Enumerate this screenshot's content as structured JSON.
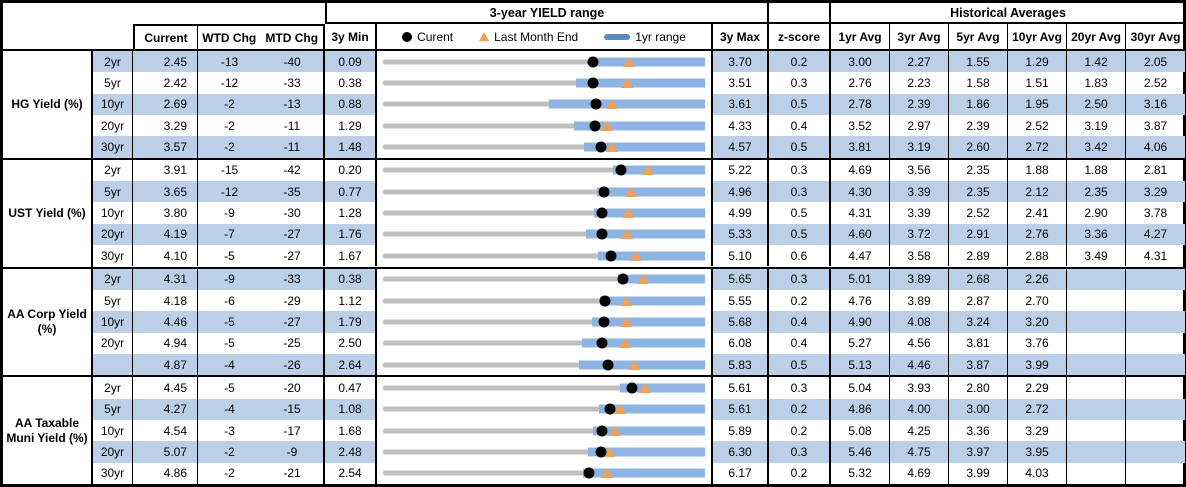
{
  "header": {
    "chart_group_title": "3-year YIELD range",
    "historical_group_title": "Historical Averages",
    "col_current": "Current",
    "col_wtd": "WTD Chg",
    "col_mtd": "MTD Chg",
    "col_3y_min": "3y Min",
    "col_3y_max": "3y Max",
    "col_zscore": "z-score",
    "avg_cols": [
      "1yr Avg",
      "3yr Avg",
      "5yr Avg",
      "10yr Avg",
      "20yr Avg",
      "30yr Avg"
    ],
    "legend": {
      "current": "Curent",
      "last_month_end": "Last Month End",
      "one_yr_range": "1yr range"
    }
  },
  "colors": {
    "row_stripe": "#BCCFE8",
    "range_bar_blue": "#8EB4E3",
    "track_gray": "#BFBFBF",
    "marker_orange": "#F2A054",
    "marker_black": "#060606",
    "legend_bar_blue": "#5B8AC5"
  },
  "chart_data": {
    "type": "table",
    "description": "Yield table; each row has a bullet-range chart plotting current (black dot), last month end (orange triangle) and 1yr range (blue bar) on a 3y min-max gray track.",
    "sections": [
      {
        "label": "HG Yield (%)",
        "rows": [
          {
            "tenor": "2yr",
            "current": 2.45,
            "wtd_chg": -13,
            "mtd_chg": -40,
            "min_3y": 0.09,
            "max_3y": 3.7,
            "z_score": 0.2,
            "last_month_end": 2.85,
            "one_yr_low": 2.4,
            "avgs": [
              "3.00",
              "2.27",
              "1.55",
              "1.29",
              "1.42",
              "2.05"
            ]
          },
          {
            "tenor": "5yr",
            "current": 2.42,
            "wtd_chg": -12,
            "mtd_chg": -33,
            "min_3y": 0.38,
            "max_3y": 3.51,
            "z_score": 0.3,
            "last_month_end": 2.75,
            "one_yr_low": 2.26,
            "avgs": [
              "2.76",
              "2.23",
              "1.58",
              "1.51",
              "1.83",
              "2.52"
            ]
          },
          {
            "tenor": "10yr",
            "current": 2.69,
            "wtd_chg": -2,
            "mtd_chg": -13,
            "min_3y": 0.88,
            "max_3y": 3.61,
            "z_score": 0.5,
            "last_month_end": 2.82,
            "one_yr_low": 2.29,
            "avgs": [
              "2.78",
              "2.39",
              "1.86",
              "1.95",
              "2.50",
              "3.16"
            ]
          },
          {
            "tenor": "20yr",
            "current": 3.29,
            "wtd_chg": -2,
            "mtd_chg": -11,
            "min_3y": 1.29,
            "max_3y": 4.33,
            "z_score": 0.4,
            "last_month_end": 3.4,
            "one_yr_low": 3.09,
            "avgs": [
              "3.52",
              "2.97",
              "2.39",
              "2.52",
              "3.19",
              "3.87"
            ]
          },
          {
            "tenor": "30yr",
            "current": 3.57,
            "wtd_chg": -2,
            "mtd_chg": -11,
            "min_3y": 1.48,
            "max_3y": 4.57,
            "z_score": 0.5,
            "last_month_end": 3.68,
            "one_yr_low": 3.41,
            "avgs": [
              "3.81",
              "3.19",
              "2.60",
              "2.72",
              "3.42",
              "4.06"
            ]
          }
        ]
      },
      {
        "label": "UST Yield (%)",
        "rows": [
          {
            "tenor": "2yr",
            "current": 3.91,
            "wtd_chg": -15,
            "mtd_chg": -42,
            "min_3y": 0.2,
            "max_3y": 5.22,
            "z_score": 0.3,
            "last_month_end": 4.33,
            "one_yr_low": 3.79,
            "avgs": [
              "4.69",
              "3.56",
              "2.35",
              "1.88",
              "1.88",
              "2.81"
            ]
          },
          {
            "tenor": "5yr",
            "current": 3.65,
            "wtd_chg": -12,
            "mtd_chg": -35,
            "min_3y": 0.77,
            "max_3y": 4.96,
            "z_score": 0.3,
            "last_month_end": 4.0,
            "one_yr_low": 3.56,
            "avgs": [
              "4.30",
              "3.39",
              "2.35",
              "2.12",
              "2.35",
              "3.29"
            ]
          },
          {
            "tenor": "10yr",
            "current": 3.8,
            "wtd_chg": -9,
            "mtd_chg": -30,
            "min_3y": 1.28,
            "max_3y": 4.99,
            "z_score": 0.5,
            "last_month_end": 4.1,
            "one_yr_low": 3.71,
            "avgs": [
              "4.31",
              "3.39",
              "2.52",
              "2.41",
              "2.90",
              "3.78"
            ]
          },
          {
            "tenor": "20yr",
            "current": 4.19,
            "wtd_chg": -7,
            "mtd_chg": -27,
            "min_3y": 1.76,
            "max_3y": 5.33,
            "z_score": 0.5,
            "last_month_end": 4.46,
            "one_yr_low": 4.01,
            "avgs": [
              "4.60",
              "3.72",
              "2.91",
              "2.76",
              "3.36",
              "4.27"
            ]
          },
          {
            "tenor": "30yr",
            "current": 4.1,
            "wtd_chg": -5,
            "mtd_chg": -27,
            "min_3y": 1.67,
            "max_3y": 5.1,
            "z_score": 0.6,
            "last_month_end": 4.37,
            "one_yr_low": 3.96,
            "avgs": [
              "4.47",
              "3.58",
              "2.89",
              "2.88",
              "3.49",
              "4.31"
            ]
          }
        ]
      },
      {
        "label": "AA Corp Yield (%)",
        "rows": [
          {
            "tenor": "2yr",
            "current": 4.31,
            "wtd_chg": -9,
            "mtd_chg": -33,
            "min_3y": 0.38,
            "max_3y": 5.65,
            "z_score": 0.3,
            "last_month_end": 4.64,
            "one_yr_low": 4.22,
            "avgs": [
              "5.01",
              "3.89",
              "2.68",
              "2.26",
              "",
              ""
            ]
          },
          {
            "tenor": "5yr",
            "current": 4.18,
            "wtd_chg": -6,
            "mtd_chg": -29,
            "min_3y": 1.12,
            "max_3y": 5.55,
            "z_score": 0.2,
            "last_month_end": 4.47,
            "one_yr_low": 4.11,
            "avgs": [
              "4.76",
              "3.89",
              "2.87",
              "2.70",
              "",
              ""
            ]
          },
          {
            "tenor": "10yr",
            "current": 4.46,
            "wtd_chg": -5,
            "mtd_chg": -27,
            "min_3y": 1.79,
            "max_3y": 5.68,
            "z_score": 0.4,
            "last_month_end": 4.73,
            "one_yr_low": 4.32,
            "avgs": [
              "4.90",
              "4.08",
              "3.24",
              "3.20",
              "",
              ""
            ]
          },
          {
            "tenor": "20yr",
            "current": 4.94,
            "wtd_chg": -5,
            "mtd_chg": -25,
            "min_3y": 2.5,
            "max_3y": 6.08,
            "z_score": 0.4,
            "last_month_end": 5.19,
            "one_yr_low": 4.71,
            "avgs": [
              "5.27",
              "4.56",
              "3.81",
              "3.76",
              "",
              ""
            ]
          },
          {
            "tenor": "",
            "current": 4.87,
            "wtd_chg": -4,
            "mtd_chg": -26,
            "min_3y": 2.64,
            "max_3y": 5.83,
            "z_score": 0.5,
            "last_month_end": 5.13,
            "one_yr_low": 4.58,
            "avgs": [
              "5.13",
              "4.46",
              "3.87",
              "3.99",
              "",
              ""
            ]
          }
        ]
      },
      {
        "label": "AA Taxable Muni Yield (%)",
        "rows": [
          {
            "tenor": "2yr",
            "current": 4.45,
            "wtd_chg": -5,
            "mtd_chg": -20,
            "min_3y": 0.47,
            "max_3y": 5.61,
            "z_score": 0.3,
            "last_month_end": 4.65,
            "one_yr_low": 4.26,
            "avgs": [
              "5.04",
              "3.93",
              "2.80",
              "2.29",
              "",
              ""
            ]
          },
          {
            "tenor": "5yr",
            "current": 4.27,
            "wtd_chg": -4,
            "mtd_chg": -15,
            "min_3y": 1.08,
            "max_3y": 5.61,
            "z_score": 0.2,
            "last_month_end": 4.42,
            "one_yr_low": 4.12,
            "avgs": [
              "4.86",
              "4.00",
              "3.00",
              "2.72",
              "",
              ""
            ]
          },
          {
            "tenor": "10yr",
            "current": 4.54,
            "wtd_chg": -3,
            "mtd_chg": -17,
            "min_3y": 1.68,
            "max_3y": 5.89,
            "z_score": 0.2,
            "last_month_end": 4.71,
            "one_yr_low": 4.42,
            "avgs": [
              "5.08",
              "4.25",
              "3.36",
              "3.29",
              "",
              ""
            ]
          },
          {
            "tenor": "20yr",
            "current": 5.07,
            "wtd_chg": -2,
            "mtd_chg": -9,
            "min_3y": 2.48,
            "max_3y": 6.3,
            "z_score": 0.3,
            "last_month_end": 5.16,
            "one_yr_low": 4.91,
            "avgs": [
              "5.46",
              "4.75",
              "3.97",
              "3.95",
              "",
              ""
            ]
          },
          {
            "tenor": "30yr",
            "current": 4.86,
            "wtd_chg": -2,
            "mtd_chg": -21,
            "min_3y": 2.54,
            "max_3y": 6.17,
            "z_score": 0.2,
            "last_month_end": 5.07,
            "one_yr_low": 4.8,
            "avgs": [
              "5.32",
              "4.69",
              "3.99",
              "4.03",
              "",
              ""
            ]
          }
        ]
      }
    ]
  }
}
